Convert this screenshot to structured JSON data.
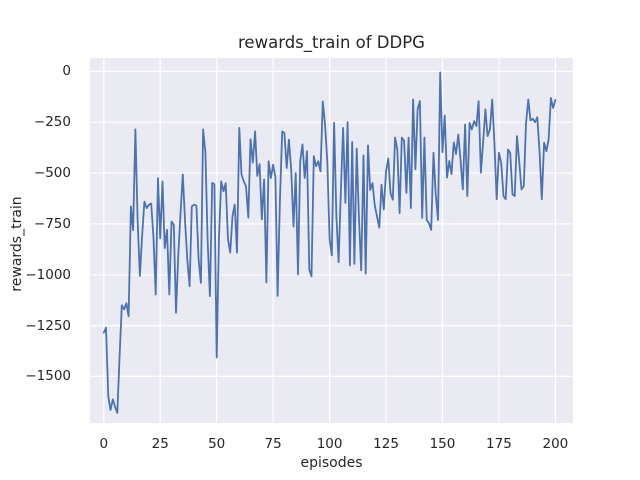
{
  "chart_data": {
    "type": "line",
    "title": "rewards_train of DDPG",
    "xlabel": "episodes",
    "ylabel": "rewards_train",
    "x_tick_values": [
      0,
      25,
      50,
      75,
      100,
      125,
      150,
      175,
      200
    ],
    "x_tick_labels": [
      "0",
      "25",
      "50",
      "75",
      "100",
      "125",
      "150",
      "175",
      "200"
    ],
    "y_tick_values": [
      0,
      -250,
      -500,
      -750,
      -1000,
      -1250,
      -1500
    ],
    "y_tick_labels": [
      "0",
      "−250",
      "−500",
      "−750",
      "−1000",
      "−1250",
      "−1500"
    ],
    "xlim": [
      -6.1,
      207.8
    ],
    "ylim": [
      -1729,
      66
    ],
    "x_start": 0,
    "x_step": 1,
    "grid": true,
    "legend": "none",
    "style": {
      "figure_bg": "#ffffff",
      "axes_bg": "#eaeaf2",
      "grid_color": "#ffffff",
      "line_color": "#4c72b0",
      "text_color": "#262626"
    },
    "series": [
      {
        "name": "rewards_train",
        "values": [
          -1285,
          -1260,
          -1600,
          -1665,
          -1613,
          -1650,
          -1680,
          -1400,
          -1150,
          -1170,
          -1140,
          -1205,
          -664,
          -781,
          -285,
          -728,
          -1005,
          -802,
          -640,
          -672,
          -656,
          -650,
          -820,
          -1097,
          -525,
          -820,
          -541,
          -869,
          -779,
          -1097,
          -738,
          -754,
          -1187,
          -902,
          -700,
          -507,
          -740,
          -925,
          -1056,
          -664,
          -655,
          -660,
          -925,
          -1040,
          -285,
          -398,
          -826,
          -1105,
          -548,
          -555,
          -1407,
          -826,
          -541,
          -589,
          -550,
          -826,
          -891,
          -712,
          -655,
          -891,
          -278,
          -507,
          -541,
          -565,
          -719,
          -334,
          -449,
          -295,
          -514,
          -457,
          -727,
          -531,
          -1038,
          -442,
          -524,
          -459,
          -520,
          -1104,
          -640,
          -295,
          -303,
          -475,
          -336,
          -483,
          -763,
          -500,
          -998,
          -442,
          -359,
          -524,
          -393,
          -975,
          -1008,
          -417,
          -466,
          -442,
          -492,
          -148,
          -266,
          -442,
          -823,
          -905,
          -253,
          -713,
          -938,
          -583,
          -278,
          -647,
          -249,
          -954,
          -347,
          -946,
          -380,
          -713,
          -978,
          -413,
          -995,
          -364,
          -583,
          -549,
          -656,
          -713,
          -768,
          -557,
          -679,
          -492,
          -428,
          -598,
          -631,
          -325,
          -383,
          -697,
          -325,
          -341,
          -598,
          -325,
          -672,
          -138,
          -481,
          -187,
          -146,
          -721,
          -325,
          -730,
          -746,
          -779,
          -400,
          -600,
          -730,
          -5,
          -397,
          -217,
          -522,
          -440,
          -505,
          -349,
          -406,
          -310,
          -433,
          -580,
          -261,
          -613,
          -253,
          -285,
          -245,
          -269,
          -146,
          -498,
          -351,
          -187,
          -318,
          -285,
          -138,
          -351,
          -629,
          -400,
          -449,
          -613,
          -629,
          -384,
          -400,
          -605,
          -613,
          -318,
          -449,
          -580,
          -564,
          -257,
          -138,
          -241,
          -233,
          -249,
          -225,
          -400,
          -629,
          -351,
          -392,
          -334,
          -130,
          -180,
          -140
        ]
      }
    ]
  }
}
